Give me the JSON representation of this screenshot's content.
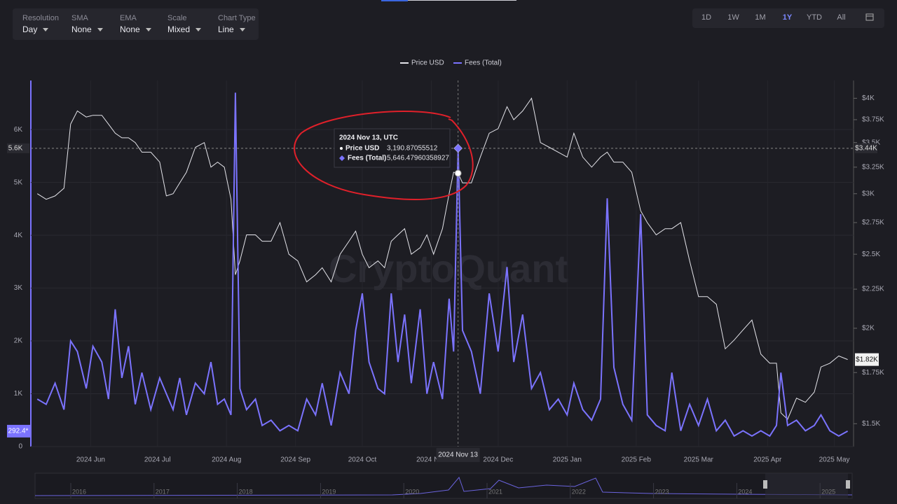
{
  "controls": {
    "selectors": [
      {
        "label": "Resolution",
        "value": "Day"
      },
      {
        "label": "SMA",
        "value": "None"
      },
      {
        "label": "EMA",
        "value": "None"
      },
      {
        "label": "Scale",
        "value": "Mixed"
      },
      {
        "label": "Chart Type",
        "value": "Line"
      }
    ],
    "ranges": [
      "1D",
      "1W",
      "1M",
      "1Y",
      "YTD",
      "All"
    ],
    "active_range": "1Y"
  },
  "watermark": "CryptoQuant",
  "navigator": {
    "years": [
      "2016",
      "2017",
      "2018",
      "2019",
      "2020",
      "2021",
      "2022",
      "2023",
      "2024",
      "2025"
    ]
  },
  "chart_data": {
    "type": "line",
    "y2log": true,
    "grid": true,
    "x": [
      "2024-05-08",
      "2024-05-12",
      "2024-05-16",
      "2024-05-20",
      "2024-05-23",
      "2024-05-26",
      "2024-05-30",
      "2024-06-02",
      "2024-06-06",
      "2024-06-09",
      "2024-06-12",
      "2024-06-15",
      "2024-06-18",
      "2024-06-21",
      "2024-06-24",
      "2024-06-28",
      "2024-07-02",
      "2024-07-05",
      "2024-07-08",
      "2024-07-11",
      "2024-07-14",
      "2024-07-18",
      "2024-07-22",
      "2024-07-25",
      "2024-07-28",
      "2024-07-31",
      "2024-08-03",
      "2024-08-05",
      "2024-08-07",
      "2024-08-10",
      "2024-08-14",
      "2024-08-17",
      "2024-08-21",
      "2024-08-25",
      "2024-08-29",
      "2024-09-02",
      "2024-09-06",
      "2024-09-10",
      "2024-09-13",
      "2024-09-17",
      "2024-09-21",
      "2024-09-25",
      "2024-09-28",
      "2024-10-01",
      "2024-10-04",
      "2024-10-08",
      "2024-10-11",
      "2024-10-14",
      "2024-10-17",
      "2024-10-20",
      "2024-10-23",
      "2024-10-27",
      "2024-10-30",
      "2024-11-02",
      "2024-11-06",
      "2024-11-09",
      "2024-11-11",
      "2024-11-13",
      "2024-11-15",
      "2024-11-19",
      "2024-11-23",
      "2024-11-27",
      "2024-12-01",
      "2024-12-05",
      "2024-12-08",
      "2024-12-12",
      "2024-12-16",
      "2024-12-20",
      "2024-12-24",
      "2024-12-28",
      "2025-01-01",
      "2025-01-04",
      "2025-01-08",
      "2025-01-12",
      "2025-01-16",
      "2025-01-19",
      "2025-01-22",
      "2025-01-26",
      "2025-01-30",
      "2025-02-03",
      "2025-02-06",
      "2025-02-10",
      "2025-02-14",
      "2025-02-17",
      "2025-02-21",
      "2025-02-25",
      "2025-03-01",
      "2025-03-05",
      "2025-03-09",
      "2025-03-13",
      "2025-03-17",
      "2025-03-21",
      "2025-03-25",
      "2025-03-29",
      "2025-04-02",
      "2025-04-05",
      "2025-04-07",
      "2025-04-10",
      "2025-04-14",
      "2025-04-18",
      "2025-04-22",
      "2025-04-25",
      "2025-04-29",
      "2025-05-03",
      "2025-05-07"
    ],
    "series": [
      {
        "name": "Price USD",
        "color": "#e4e4ea",
        "axis": "y2",
        "values": [
          3000,
          2950,
          2980,
          3050,
          3700,
          3850,
          3780,
          3800,
          3800,
          3700,
          3600,
          3550,
          3550,
          3500,
          3400,
          3400,
          3300,
          2980,
          3000,
          3100,
          3200,
          3450,
          3500,
          3250,
          3300,
          3250,
          2950,
          2350,
          2450,
          2650,
          2650,
          2600,
          2600,
          2750,
          2500,
          2450,
          2300,
          2350,
          2400,
          2300,
          2500,
          2600,
          2680,
          2500,
          2400,
          2450,
          2400,
          2600,
          2650,
          2700,
          2500,
          2550,
          2650,
          2500,
          2700,
          3000,
          3200,
          3190.87055512,
          3100,
          3100,
          3350,
          3600,
          3650,
          3900,
          3750,
          3850,
          4000,
          3500,
          3450,
          3400,
          3350,
          3600,
          3350,
          3250,
          3350,
          3400,
          3300,
          3300,
          3200,
          2850,
          2750,
          2650,
          2700,
          2700,
          2750,
          2450,
          2200,
          2200,
          2150,
          1880,
          1930,
          1990,
          2050,
          1850,
          1800,
          1800,
          1550,
          1520,
          1620,
          1600,
          1650,
          1780,
          1800,
          1840,
          1820
        ]
      },
      {
        "name": "Fees (Total)",
        "color": "#7b73ff",
        "values": [
          900,
          800,
          1200,
          700,
          2000,
          1800,
          1100,
          1900,
          1600,
          900,
          2600,
          1300,
          1900,
          800,
          1400,
          700,
          1300,
          1000,
          700,
          1300,
          600,
          1200,
          1000,
          1600,
          800,
          900,
          600,
          6700,
          1100,
          700,
          900,
          400,
          500,
          300,
          400,
          300,
          900,
          600,
          1200,
          400,
          1400,
          1000,
          2200,
          2900,
          1600,
          1100,
          1000,
          2900,
          1600,
          2500,
          1200,
          2600,
          1000,
          1600,
          900,
          2800,
          1800,
          5646.47960358927,
          2200,
          1800,
          1000,
          2900,
          1800,
          3400,
          1600,
          2500,
          1100,
          1400,
          700,
          900,
          600,
          1200,
          700,
          500,
          900,
          4700,
          1500,
          800,
          500,
          4400,
          600,
          400,
          300,
          1400,
          300,
          800,
          400,
          900,
          300,
          500,
          200,
          300,
          200,
          300,
          200,
          400,
          1400,
          400,
          500,
          300,
          400,
          600,
          300,
          200,
          292.4
        ]
      }
    ],
    "xlim": [
      "2024-05-07",
      "2025-05-09"
    ],
    "xticks": [
      {
        "value": "2024-06-01",
        "label": "2024 Jun"
      },
      {
        "value": "2024-07-01",
        "label": "2024 Jul"
      },
      {
        "value": "2024-08-01",
        "label": "2024 Aug"
      },
      {
        "value": "2024-09-01",
        "label": "2024 Sep"
      },
      {
        "value": "2024-10-01",
        "label": "2024 Oct"
      },
      {
        "value": "2024-11-01",
        "label": "2024 Nov"
      },
      {
        "value": "2024-12-01",
        "label": "2024 Dec"
      },
      {
        "value": "2025-01-01",
        "label": "2025 Jan"
      },
      {
        "value": "2025-02-01",
        "label": "2025 Feb"
      },
      {
        "value": "2025-03-01",
        "label": "2025 Mar"
      },
      {
        "value": "2025-04-01",
        "label": "2025 Apr"
      },
      {
        "value": "2025-05-01",
        "label": "2025 May"
      }
    ],
    "ylim": [
      0,
      6930
    ],
    "yticks": [
      0,
      {
        "value": 1000,
        "label": "1K"
      },
      {
        "value": 2000,
        "label": "2K"
      },
      {
        "value": 3000,
        "label": "3K"
      },
      {
        "value": 4000,
        "label": "4K"
      },
      {
        "value": 5000,
        "label": "5K"
      },
      {
        "value": 6000,
        "label": "6K"
      }
    ],
    "y2lim": [
      1400,
      4220
    ],
    "y2ticks": [
      {
        "value": 1500,
        "label": "$1.5K"
      },
      {
        "value": 1750,
        "label": "$1.75K"
      },
      {
        "value": 2000,
        "label": "$2K"
      },
      {
        "value": 2250,
        "label": "$2.25K"
      },
      {
        "value": 2500,
        "label": "$2.5K"
      },
      {
        "value": 2750,
        "label": "$2.75K"
      },
      {
        "value": 3000,
        "label": "$3K"
      },
      {
        "value": 3250,
        "label": "$3.25K"
      },
      {
        "value": 3500,
        "label": "$3.5K"
      },
      {
        "value": 3750,
        "label": "$3.75K"
      },
      {
        "value": 4000,
        "label": "$4K"
      }
    ],
    "last_labels": {
      "fees": "292.4*",
      "price": "$1.82K"
    },
    "crosshair": {
      "x_label": "2024 Nov 13",
      "y_label": "5.6K",
      "y2_label": "$3.44K"
    },
    "tooltip": {
      "title": "2024 Nov 13, UTC",
      "price": "3,190.87055512",
      "fees": "5,646.47960358927"
    }
  }
}
